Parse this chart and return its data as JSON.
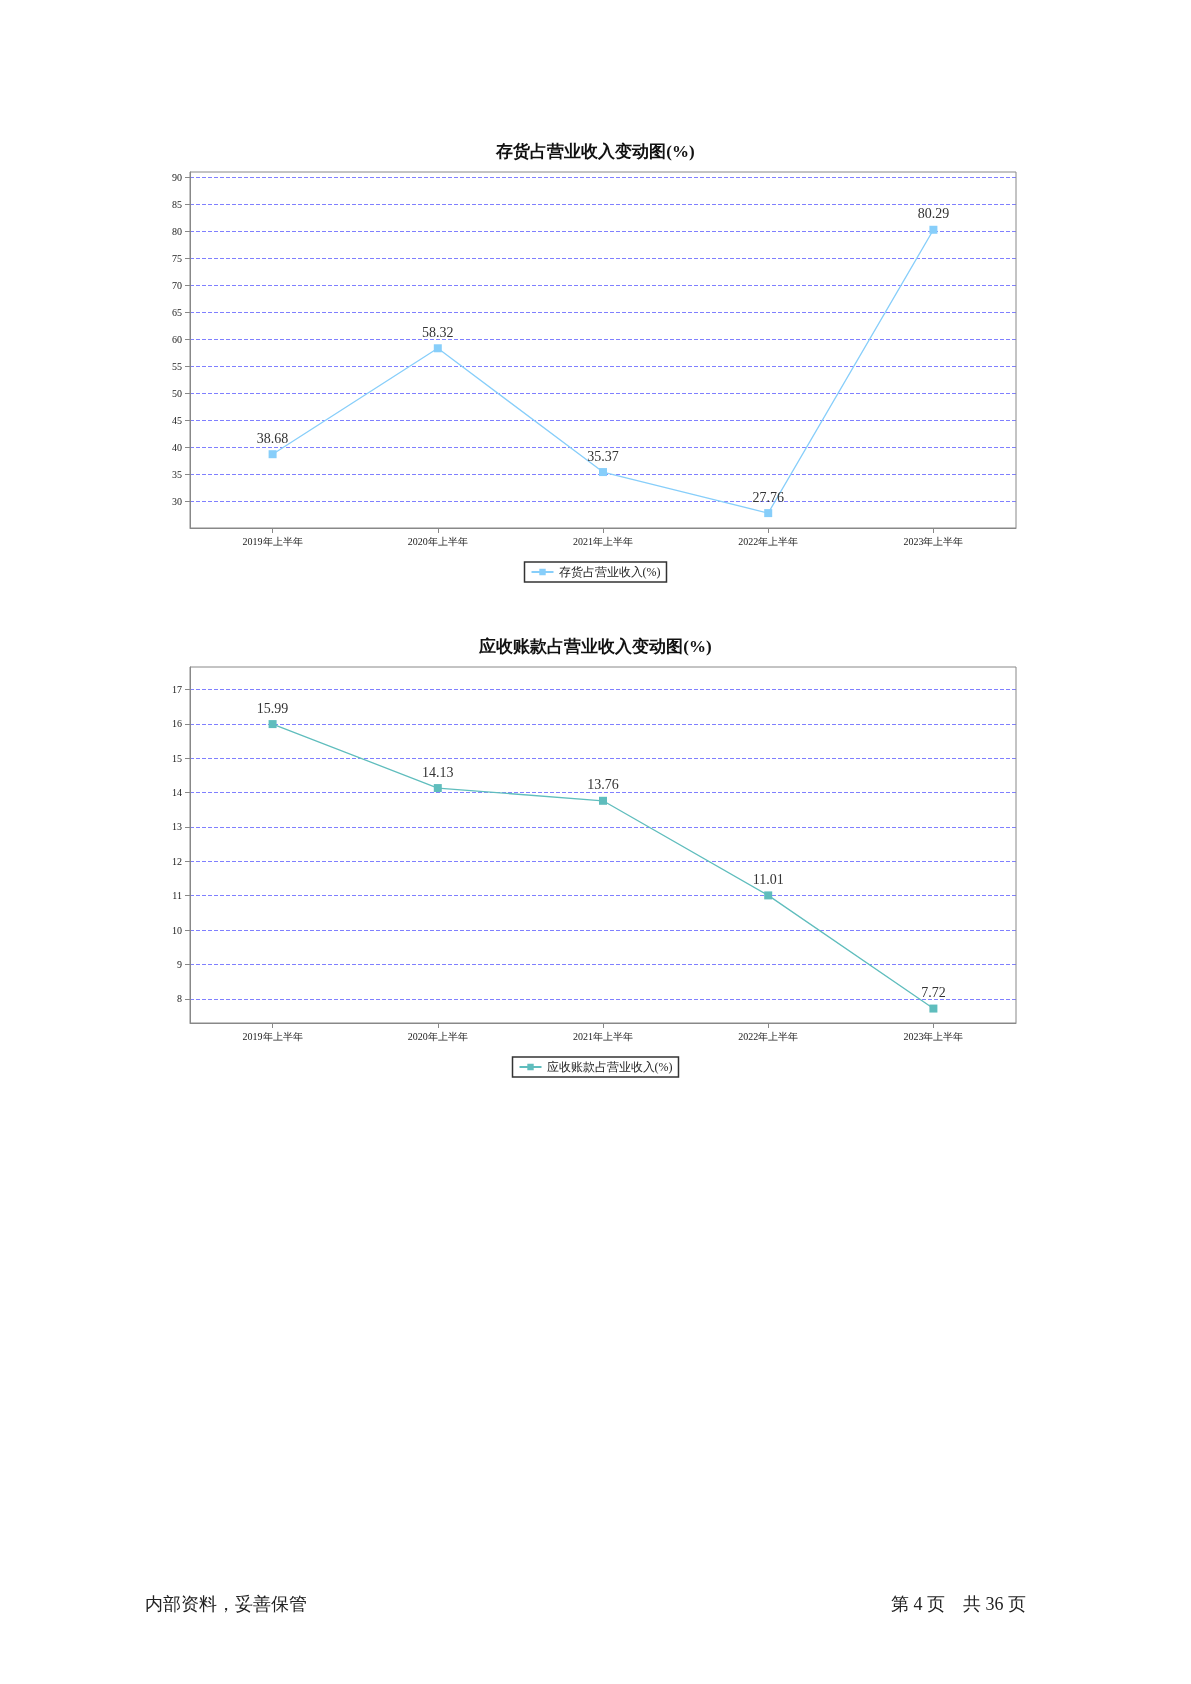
{
  "chart_data": [
    {
      "type": "line",
      "title": "存货占营业收入变动图(%)",
      "categories": [
        "2019年上半年",
        "2020年上半年",
        "2021年上半年",
        "2022年上半年",
        "2023年上半年"
      ],
      "series": [
        {
          "name": "存货占营业收入(%)",
          "color": "#87cefa",
          "values": [
            38.68,
            58.32,
            35.37,
            27.76,
            80.29
          ]
        }
      ],
      "ylim": [
        25,
        91
      ],
      "yticks": [
        30,
        35,
        40,
        45,
        50,
        55,
        60,
        65,
        70,
        75,
        80,
        85,
        90
      ],
      "grid": "y",
      "legend": "bottom",
      "marker": "square",
      "line_style": "solid",
      "data_labels": true
    },
    {
      "type": "line",
      "title": "应收账款占营业收入变动图(%)",
      "categories": [
        "2019年上半年",
        "2020年上半年",
        "2021年上半年",
        "2022年上半年",
        "2023年上半年"
      ],
      "series": [
        {
          "name": "应收账款占营业收入(%)",
          "color": "#5fbdbd",
          "values": [
            15.99,
            14.13,
            13.76,
            11.01,
            7.72
          ]
        }
      ],
      "ylim": [
        7.3,
        17.65
      ],
      "yticks": [
        8,
        9,
        10,
        11,
        12,
        13,
        14,
        15,
        16,
        17
      ],
      "grid": "y",
      "legend": "bottom",
      "marker": "square",
      "line_style": "solid",
      "data_labels": true,
      "annotations": [
        "内部资料，妥善保管",
        "第 4 页　共 36 页"
      ]
    }
  ]
}
